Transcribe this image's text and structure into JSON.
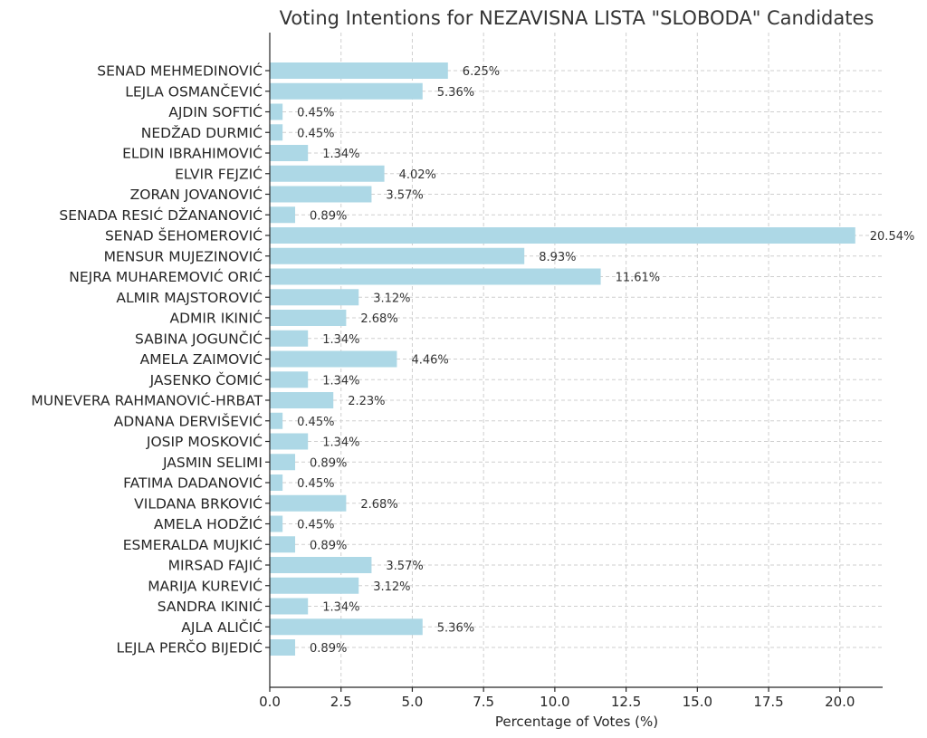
{
  "chart_data": {
    "type": "bar",
    "orientation": "horizontal",
    "title": "Voting Intentions for NEZAVISNA LISTA \"SLOBODA\" Candidates",
    "xlabel": "Percentage of Votes (%)",
    "ylabel": "",
    "xlim": [
      0,
      21.5
    ],
    "xticks": [
      0.0,
      2.5,
      5.0,
      7.5,
      10.0,
      12.5,
      15.0,
      17.5,
      20.0
    ],
    "xtick_labels": [
      "0.0",
      "2.5",
      "5.0",
      "7.5",
      "10.0",
      "12.5",
      "15.0",
      "17.5",
      "20.0"
    ],
    "grid": true,
    "bar_color": "#add8e6",
    "categories": [
      "SENAD MEHMEDINOVIĆ",
      "LEJLA OSMANČEVIĆ",
      "AJDIN SOFTIĆ",
      "NEDŽAD DURMIĆ",
      "ELDIN IBRAHIMOVIĆ",
      "ELVIR FEJZIĆ",
      "ZORAN JOVANOVIĆ",
      "SENADA RESIĆ DŽANANOVIĆ",
      "SENAD ŠEHOMEROVIĆ",
      "MENSUR MUJEZINOVIĆ",
      "NEJRA MUHAREMOVIĆ ORIĆ",
      "ALMIR MAJSTOROVIĆ",
      "ADMIR IKINIĆ",
      "SABINA JOGUNČIĆ",
      "AMELA ZAIMOVIĆ",
      "JASENKO ČOMIĆ",
      "MUNEVERA RAHMANOVIĆ-HRBAT",
      "ADNANA DERVIŠEVIĆ",
      "JOSIP MOSKOVIĆ",
      "JASMIN SELIMI",
      "FATIMA DADANOVIĆ",
      "VILDANA BRKOVIĆ",
      "AMELA HODŽIĆ",
      "ESMERALDA MUJKIĆ",
      "MIRSAD FAJIĆ",
      "MARIJA KUREVIĆ",
      "SANDRA IKINIĆ",
      "AJLA ALIČIĆ",
      "LEJLA PERČO BIJEDIĆ"
    ],
    "values": [
      6.25,
      5.36,
      0.45,
      0.45,
      1.34,
      4.02,
      3.57,
      0.89,
      20.54,
      8.93,
      11.61,
      3.12,
      2.68,
      1.34,
      4.46,
      1.34,
      2.23,
      0.45,
      1.34,
      0.89,
      0.45,
      2.68,
      0.45,
      0.89,
      3.57,
      3.12,
      1.34,
      5.36,
      0.89
    ],
    "data_labels": [
      "6.25%",
      "5.36%",
      "0.45%",
      "0.45%",
      "1.34%",
      "4.02%",
      "3.57%",
      "0.89%",
      "20.54%",
      "8.93%",
      "11.61%",
      "3.12%",
      "2.68%",
      "1.34%",
      "4.46%",
      "1.34%",
      "2.23%",
      "0.45%",
      "1.34%",
      "0.89%",
      "0.45%",
      "2.68%",
      "0.45%",
      "0.89%",
      "3.57%",
      "3.12%",
      "1.34%",
      "5.36%",
      "0.89%"
    ]
  }
}
